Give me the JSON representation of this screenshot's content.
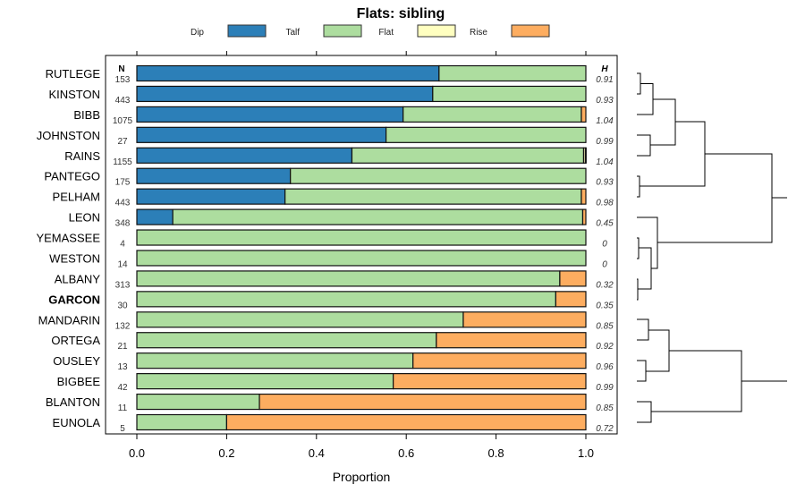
{
  "chart_data": {
    "type": "bar",
    "orientation": "horizontal-stacked",
    "title": "Flats: sibling",
    "xlabel": "Proportion",
    "xlim": [
      0,
      1
    ],
    "xticks": [
      "0.0",
      "0.2",
      "0.4",
      "0.6",
      "0.8",
      "1.0"
    ],
    "n_header": "N",
    "h_header": "H",
    "legend": [
      {
        "name": "Dip",
        "color": "#2c7fb8"
      },
      {
        "name": "Talf",
        "color": "#addd9f"
      },
      {
        "name": "Flat",
        "color": "#ffffc0"
      },
      {
        "name": "Rise",
        "color": "#fdad60"
      }
    ],
    "categories": [
      "RUTLEGE",
      "KINSTON",
      "BIBB",
      "JOHNSTON",
      "RAINS",
      "PANTEGO",
      "PELHAM",
      "LEON",
      "YEMASSEE",
      "WESTON",
      "ALBANY",
      "GARCON",
      "MANDARIN",
      "ORTEGA",
      "OUSLEY",
      "BIGBEE",
      "BLANTON",
      "EUNOLA"
    ],
    "highlight": "GARCON",
    "n": [
      "153",
      "443",
      "1075",
      "27",
      "1155",
      "175",
      "443",
      "348",
      "4",
      "14",
      "313",
      "30",
      "132",
      "21",
      "13",
      "42",
      "11",
      "5"
    ],
    "h": [
      "0.91",
      "0.93",
      "1.04",
      "0.99",
      "1.04",
      "0.93",
      "0.98",
      "0.45",
      "0",
      "0",
      "0.32",
      "0.35",
      "0.85",
      "0.92",
      "0.96",
      "0.99",
      "0.85",
      "0.72"
    ],
    "series": [
      {
        "name": "Dip",
        "values": [
          0.673,
          0.659,
          0.593,
          0.555,
          0.479,
          0.342,
          0.33,
          0.08,
          0,
          0,
          0,
          0,
          0,
          0,
          0,
          0,
          0,
          0
        ]
      },
      {
        "name": "Talf",
        "values": [
          0.327,
          0.341,
          0.397,
          0.445,
          0.516,
          0.658,
          0.66,
          0.913,
          1,
          1,
          0.942,
          0.933,
          0.727,
          0.667,
          0.615,
          0.571,
          0.273,
          0.2
        ]
      },
      {
        "name": "Flat",
        "values": [
          0,
          0,
          0,
          0,
          0.004,
          0,
          0,
          0,
          0,
          0,
          0,
          0,
          0,
          0,
          0,
          0,
          0,
          0
        ]
      },
      {
        "name": "Rise",
        "values": [
          0,
          0,
          0.01,
          0,
          0.001,
          0,
          0.01,
          0.007,
          0,
          0,
          0.058,
          0.067,
          0.273,
          0.333,
          0.385,
          0.429,
          0.727,
          0.8
        ]
      }
    ]
  }
}
